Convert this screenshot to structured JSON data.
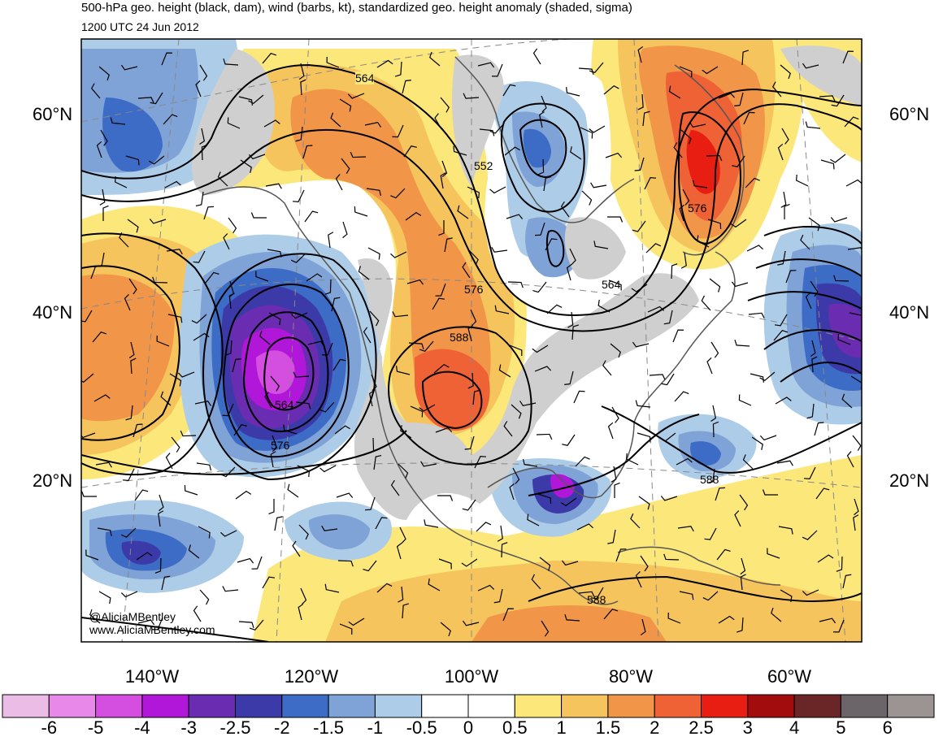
{
  "header": {
    "title": "500-hPa geo. height (black, dam), wind (barbs, kt), standardized geo. height anomaly (shaded, sigma)",
    "datetime": "1200 UTC 24 Jun 2012"
  },
  "map": {
    "lat_labels": [
      "60°N",
      "40°N",
      "20°N"
    ],
    "lon_labels": [
      "140°W",
      "120°W",
      "100°W",
      "80°W",
      "60°W"
    ],
    "contour_labels": [
      "564",
      "552",
      "576",
      "564",
      "576",
      "588",
      "564",
      "576",
      "588",
      "588"
    ],
    "credit": [
      "@AliciaMBentley",
      "www.AliciaMBentley.com"
    ]
  },
  "colorbar": {
    "labels": [
      "-6",
      "-5",
      "-4",
      "-3",
      "-2.5",
      "-2",
      "-1.5",
      "-1",
      "-0.5",
      "0",
      "0.5",
      "1",
      "1.5",
      "2",
      "2.5",
      "3",
      "4",
      "5",
      "6"
    ],
    "colors": [
      "#ebbde6",
      "#e888e8",
      "#d44ee0",
      "#b017d8",
      "#6a2cb0",
      "#3b3aa8",
      "#3d6cc6",
      "#7fa3d6",
      "#adcce8",
      "#ffffff",
      "#ffffff",
      "#fce77a",
      "#f6c45c",
      "#f19548",
      "#ee6236",
      "#e81e12",
      "#a30c0c",
      "#6a2626",
      "#6b6468",
      "#9c9393"
    ]
  },
  "colors": {
    "land": "#cfcfcf",
    "contour": "#000000",
    "coast": "#555555"
  }
}
